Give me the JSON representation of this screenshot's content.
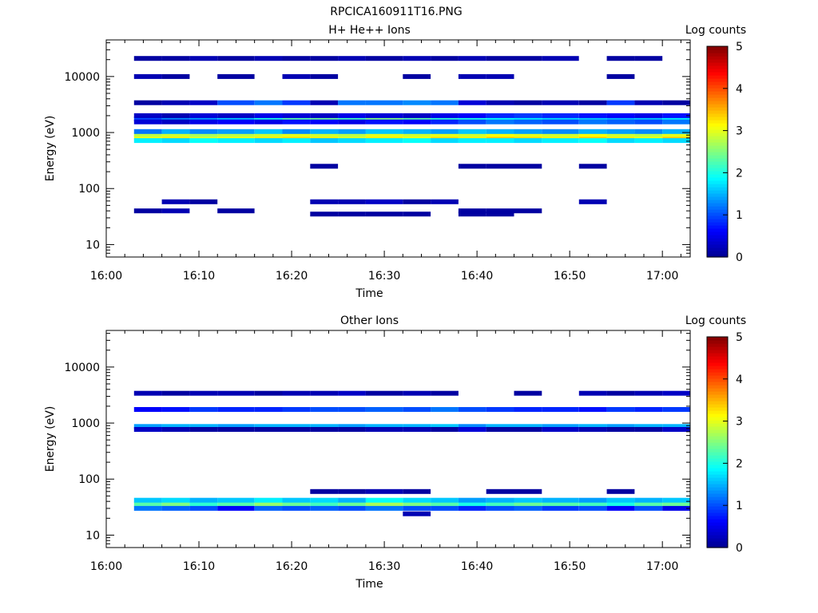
{
  "figure_title": "RPCICA160911T16.PNG",
  "colormap": [
    "#00008f",
    "#0000ff",
    "#0080ff",
    "#00ffff",
    "#80ff80",
    "#ffff00",
    "#ff8000",
    "#ff0000",
    "#800000"
  ],
  "chart_data": [
    {
      "type": "heatmap",
      "title": "H+ He++ Ions",
      "xlabel": "Time",
      "ylabel": "Energy (eV)",
      "x_ticks": [
        "16:00",
        "16:10",
        "16:20",
        "16:30",
        "16:40",
        "16:50",
        "17:00"
      ],
      "x_range": [
        "16:00",
        "17:03"
      ],
      "y_scale": "log",
      "y_ticks": [
        "10",
        "100",
        "1000",
        "10000"
      ],
      "ylim": [
        6,
        45000
      ],
      "colorbar": {
        "label": "Log counts",
        "range": [
          0,
          5
        ],
        "ticks": [
          "0",
          "1",
          "2",
          "3",
          "4",
          "5"
        ]
      },
      "time_bins": [
        "16:03",
        "16:06",
        "16:09",
        "16:12",
        "16:16",
        "16:19",
        "16:22",
        "16:25",
        "16:28",
        "16:32",
        "16:35",
        "16:38",
        "16:41",
        "16:44",
        "16:47",
        "16:51",
        "16:54",
        "16:57",
        "17:00"
      ],
      "bands": [
        {
          "e": 820,
          "counts": [
            3.1,
            3.2,
            3.0,
            3.1,
            3.2,
            3.3,
            3.2,
            3.0,
            3.2,
            3.1,
            3.3,
            3.2,
            3.4,
            3.3,
            3.2,
            3.4,
            3.2,
            3.1,
            3.4
          ]
        },
        {
          "e": 920,
          "counts": [
            2.8,
            2.9,
            2.7,
            2.8,
            2.9,
            3.0,
            2.9,
            2.8,
            3.0,
            2.9,
            3.0,
            2.9,
            3.1,
            3.0,
            2.9,
            3.1,
            2.9,
            2.8,
            3.0
          ]
        },
        {
          "e": 720,
          "counts": [
            1.8,
            1.7,
            1.9,
            1.8,
            1.7,
            1.8,
            1.6,
            1.7,
            1.8,
            1.9,
            1.7,
            1.8,
            1.8,
            1.7,
            1.8,
            1.9,
            1.7,
            1.8,
            1.7
          ]
        },
        {
          "e": 1040,
          "counts": [
            1.2,
            1.5,
            1.3,
            1.4,
            1.6,
            1.3,
            1.5,
            1.4,
            1.6,
            1.5,
            1.4,
            1.6,
            1.5,
            1.4,
            1.3,
            1.5,
            1.4,
            1.3,
            1.5
          ]
        },
        {
          "e": 1750,
          "counts": [
            1.0,
            1.3,
            1.4,
            1.6,
            2.0,
            2.3,
            2.4,
            2.2,
            2.5,
            2.3,
            2.1,
            2.0,
            1.9,
            1.8,
            1.7,
            1.6,
            1.5,
            1.6,
            1.8
          ]
        },
        {
          "e": 1550,
          "counts": [
            0.4,
            0.3,
            0.5,
            0.6,
            0.5,
            0.7,
            0.6,
            0.5,
            0.7,
            0.6,
            0.8,
            1.0,
            1.2,
            1.1,
            1.0,
            1.2,
            1.1,
            1.0,
            1.2
          ]
        },
        {
          "e": 2000,
          "counts": [
            0.3,
            0.2,
            0.4,
            0.3,
            0.5,
            0.4,
            0.3,
            0.5,
            0.4,
            0.3,
            0.5,
            0.6,
            0.8,
            0.9,
            0.8,
            0.7,
            0.6,
            0.5,
            0.7
          ]
        },
        {
          "e": 3400,
          "counts": [
            0.1,
            0.2,
            0.3,
            1.0,
            1.2,
            0.9,
            0.2,
            1.2,
            1.2,
            1.3,
            1.2,
            0.4,
            0.2,
            0.1,
            0.2,
            0.1,
            0.9,
            0.2,
            0.1
          ]
        },
        {
          "e": 40,
          "counts": [
            0.1,
            0.2,
            null,
            0.1,
            null,
            null,
            null,
            null,
            null,
            null,
            null,
            0.1,
            0.1,
            0.1,
            null,
            null,
            null,
            null,
            null
          ]
        },
        {
          "e": 35,
          "counts": [
            null,
            null,
            null,
            null,
            null,
            null,
            0.1,
            0.1,
            0.1,
            0.1,
            null,
            0.1,
            0.1,
            null,
            null,
            null,
            null,
            null,
            null
          ]
        },
        {
          "e": 58,
          "counts": [
            null,
            0.2,
            0.1,
            null,
            null,
            null,
            0.2,
            0.2,
            0.3,
            0.1,
            0.2,
            null,
            null,
            null,
            null,
            0.2,
            null,
            null,
            null
          ]
        },
        {
          "e": 10000,
          "counts": [
            0.2,
            0.1,
            null,
            0.1,
            null,
            0.2,
            0.1,
            null,
            null,
            0.1,
            null,
            0.2,
            0.2,
            null,
            null,
            null,
            0.1,
            null,
            null
          ]
        },
        {
          "e": 21000,
          "counts": [
            0.1,
            0.1,
            0.2,
            0.1,
            0.2,
            0.1,
            0.1,
            0.2,
            0.1,
            0.2,
            0.1,
            0.2,
            0.1,
            0.1,
            0.2,
            null,
            0.1,
            0.1,
            null
          ]
        },
        {
          "e": 250,
          "counts": [
            null,
            null,
            null,
            null,
            null,
            null,
            0.1,
            null,
            null,
            null,
            null,
            0.1,
            0.1,
            0.1,
            null,
            0.1,
            null,
            null,
            null
          ]
        }
      ]
    },
    {
      "type": "heatmap",
      "title": "Other Ions",
      "xlabel": "Time",
      "ylabel": "Energy (eV)",
      "x_ticks": [
        "16:00",
        "16:10",
        "16:20",
        "16:30",
        "16:40",
        "16:50",
        "17:00"
      ],
      "x_range": [
        "16:00",
        "17:03"
      ],
      "y_scale": "log",
      "y_ticks": [
        "10",
        "100",
        "1000",
        "10000"
      ],
      "ylim": [
        6,
        45000
      ],
      "colorbar": {
        "label": "Log counts",
        "range": [
          0,
          5
        ],
        "ticks": [
          "0",
          "1",
          "2",
          "3",
          "4",
          "5"
        ]
      },
      "time_bins": [
        "16:03",
        "16:06",
        "16:09",
        "16:12",
        "16:16",
        "16:19",
        "16:22",
        "16:25",
        "16:28",
        "16:32",
        "16:35",
        "16:38",
        "16:41",
        "16:44",
        "16:47",
        "16:51",
        "16:54",
        "16:57",
        "17:00"
      ],
      "bands": [
        {
          "e": 36,
          "counts": [
            2.3,
            2.5,
            2.1,
            2.3,
            2.6,
            2.4,
            2.2,
            2.4,
            2.7,
            2.5,
            2.3,
            2.0,
            2.2,
            2.4,
            2.3,
            2.2,
            2.0,
            2.3,
            2.4
          ]
        },
        {
          "e": 42,
          "counts": [
            1.6,
            1.7,
            1.5,
            1.6,
            1.8,
            1.6,
            1.7,
            1.5,
            1.9,
            1.7,
            1.6,
            1.4,
            1.5,
            1.6,
            1.5,
            1.4,
            1.6,
            1.5,
            1.6
          ]
        },
        {
          "e": 30,
          "counts": [
            1.2,
            1.1,
            1.0,
            0.6,
            1.1,
            1.0,
            1.1,
            1.0,
            1.2,
            1.0,
            1.0,
            0.8,
            1.0,
            1.1,
            0.9,
            1.0,
            0.6,
            1.0,
            0.5
          ]
        },
        {
          "e": 870,
          "counts": [
            1.4,
            1.5,
            1.5,
            1.4,
            1.5,
            1.5,
            1.5,
            1.4,
            1.5,
            1.5,
            1.6,
            1.3,
            1.5,
            1.5,
            1.4,
            1.5,
            1.4,
            1.5,
            1.5
          ]
        },
        {
          "e": 770,
          "counts": [
            0.3,
            0.2,
            0.1,
            0.1,
            0.1,
            0.1,
            0.1,
            0.1,
            0.2,
            0.2,
            0.1,
            0.4,
            0.1,
            0.1,
            0.3,
            0.2,
            0.1,
            0.1,
            0.3
          ]
        },
        {
          "e": 1750,
          "counts": [
            0.6,
            0.7,
            0.9,
            0.8,
            0.8,
            0.9,
            1.0,
            1.0,
            1.1,
            1.0,
            1.2,
            1.0,
            0.9,
            0.8,
            0.8,
            0.7,
            0.9,
            0.8,
            0.9
          ]
        },
        {
          "e": 3400,
          "counts": [
            0.2,
            0.1,
            0.2,
            0.2,
            0.1,
            0.2,
            0.2,
            0.3,
            0.1,
            0.2,
            0.1,
            null,
            null,
            0.1,
            null,
            0.2,
            0.1,
            0.2,
            0.3
          ]
        },
        {
          "e": 60,
          "counts": [
            null,
            null,
            null,
            null,
            null,
            null,
            0.1,
            0.1,
            0.2,
            0.1,
            null,
            null,
            0.1,
            0.1,
            null,
            null,
            0.1,
            null,
            null
          ]
        },
        {
          "e": 24,
          "counts": [
            null,
            null,
            null,
            null,
            null,
            null,
            null,
            null,
            null,
            0.2,
            null,
            null,
            null,
            null,
            null,
            null,
            null,
            null,
            null
          ]
        }
      ]
    }
  ]
}
